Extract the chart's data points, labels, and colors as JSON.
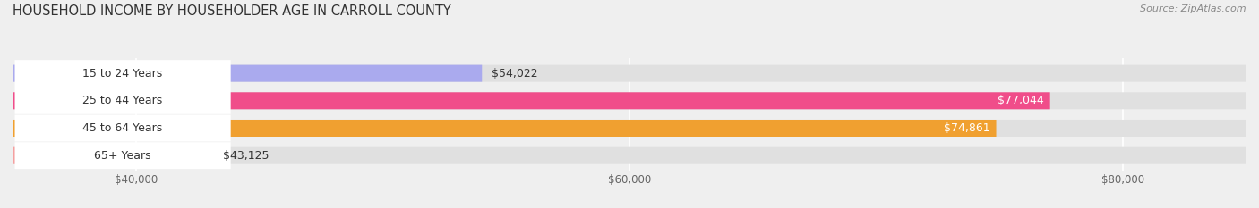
{
  "title": "HOUSEHOLD INCOME BY HOUSEHOLDER AGE IN CARROLL COUNTY",
  "source": "Source: ZipAtlas.com",
  "categories": [
    "15 to 24 Years",
    "25 to 44 Years",
    "45 to 64 Years",
    "65+ Years"
  ],
  "values": [
    54022,
    77044,
    74861,
    43125
  ],
  "bar_colors": [
    "#aaaaee",
    "#f04d8a",
    "#f0a030",
    "#f4a0a0"
  ],
  "value_label_inside": [
    false,
    true,
    true,
    false
  ],
  "value_label_colors_inside": "#ffffff",
  "value_label_color_outside": "#333333",
  "xlim_min": 35000,
  "xlim_max": 85000,
  "xticks": [
    40000,
    60000,
    80000
  ],
  "xtick_labels": [
    "$40,000",
    "$60,000",
    "$80,000"
  ],
  "background_color": "#efefef",
  "bar_bg_color": "#e0e0e0",
  "title_fontsize": 10.5,
  "source_fontsize": 8,
  "tick_fontsize": 8.5,
  "label_fontsize": 9,
  "value_fontsize": 9
}
